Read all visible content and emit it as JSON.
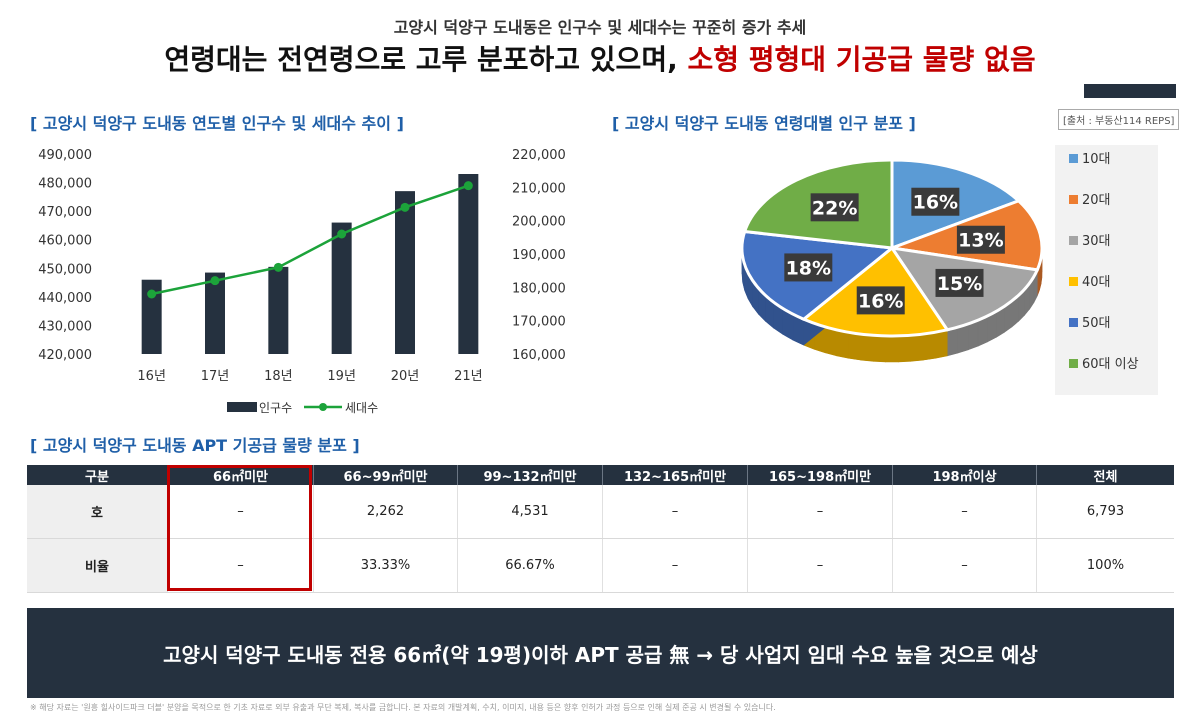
{
  "header": {
    "subtitle": "고양시 덕양구 도내동은 인구수 및 세대수는 꾸준히 증가 추세",
    "title_main": "연령대는 전연령으로 고루 분포하고 있으며,",
    "title_highlight": "소형 평형대 기공급 물량 없음"
  },
  "sections": {
    "population_chart_title": "[ 고양시 덕양구 도내동 연도별 인구수 및 세대수 추이 ]",
    "age_chart_title": "[ 고양시 덕양구 도내동 연령대별 인구 분포 ]",
    "source": "[출처 : 부동산114 REPS]",
    "apt_table_title": "[ 고양시 덕양구 도내동 APT 기공급 물량 분포 ]"
  },
  "chart_data": [
    {
      "type": "bar",
      "categories": [
        "16년",
        "17년",
        "18년",
        "19년",
        "20년",
        "21년"
      ],
      "series": [
        {
          "name": "인구수",
          "type": "bar",
          "axis": "left",
          "color": "#25313f",
          "values": [
            446000,
            448500,
            450500,
            466000,
            477000,
            483000
          ]
        },
        {
          "name": "세대수",
          "type": "line",
          "axis": "right",
          "color": "#1ca33a",
          "values": [
            178000,
            182000,
            186000,
            196000,
            204000,
            210500
          ]
        }
      ],
      "ylim_left": [
        420000,
        490000
      ],
      "yticks_left": [
        "490,000",
        "480,000",
        "470,000",
        "460,000",
        "450,000",
        "440,000",
        "430,000",
        "420,000"
      ],
      "ylim_right": [
        160000,
        220000
      ],
      "yticks_right": [
        "220,000",
        "210,000",
        "200,000",
        "190,000",
        "180,000",
        "170,000",
        "160,000"
      ],
      "legend": "bottom"
    },
    {
      "type": "pie",
      "categories": [
        "10대",
        "20대",
        "30대",
        "40대",
        "50대",
        "60대 이상"
      ],
      "values": [
        16,
        13,
        15,
        16,
        18,
        22
      ],
      "labels": [
        "16%",
        "13%",
        "15%",
        "16%",
        "18%",
        "22%"
      ],
      "colors": [
        "#5b9bd5",
        "#ed7d31",
        "#a5a5a5",
        "#ffc000",
        "#4472c4",
        "#70ad47"
      ],
      "legend": "right"
    }
  ],
  "apt_table": {
    "headers": [
      "구분",
      "66㎡미만",
      "66~99㎡미만",
      "99~132㎡미만",
      "132~165㎡미만",
      "165~198㎡미만",
      "198㎡이상",
      "전체"
    ],
    "rows": [
      {
        "label": "호",
        "cells": [
          "–",
          "2,262",
          "4,531",
          "–",
          "–",
          "–",
          "6,793"
        ]
      },
      {
        "label": "비율",
        "cells": [
          "–",
          "33.33%",
          "66.67%",
          "–",
          "–",
          "–",
          "100%"
        ]
      }
    ]
  },
  "banner": "고양시 덕양구 도내동 전용 66㎡(약 19평)이하 APT 공급 無 → 당 사업지 임대 수요 높을 것으로 예상",
  "footnote": "※ 해당 자료는 '원흥 힐사이드파크 더블' 분양을 목적으로 한 기초 자료로 외부 유출과 무단 복제, 복사를 금합니다. 본 자료의 개발계획, 수치, 이미지, 내용 등은 향후 인허가 과정 등으로 인해 실제 준공 시 변경될 수 있습니다."
}
